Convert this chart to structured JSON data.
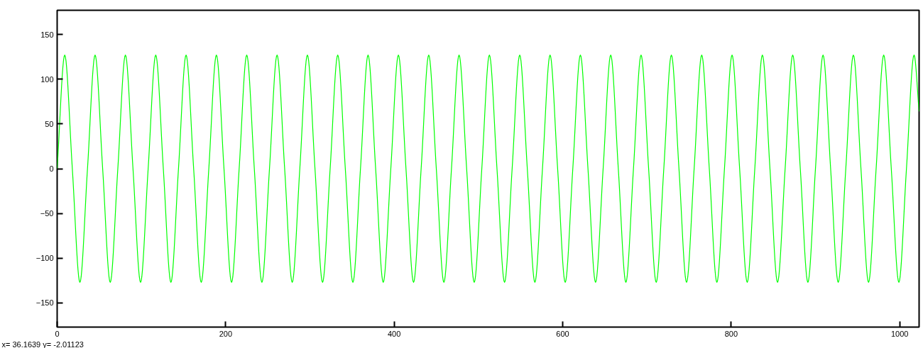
{
  "chart_data": {
    "type": "line",
    "x": [
      0,
      9,
      18,
      27,
      36,
      45,
      54,
      63,
      72,
      81,
      90,
      99,
      108,
      117,
      126,
      135,
      144,
      153,
      162,
      171,
      180,
      189,
      198,
      207,
      216,
      225,
      234,
      243,
      252,
      261,
      270,
      279,
      288,
      297,
      306,
      315,
      324,
      333,
      342,
      351,
      360,
      369,
      378,
      387,
      396,
      405,
      414,
      423,
      432,
      441,
      450,
      459,
      468,
      477,
      486,
      495,
      504,
      513,
      522,
      531,
      540,
      549,
      558,
      567,
      576,
      585,
      594,
      603,
      612,
      621,
      630,
      639,
      648,
      657,
      666,
      675,
      684,
      693,
      702,
      711,
      720,
      729,
      738,
      747,
      756,
      765,
      774,
      783,
      792,
      801,
      810,
      819,
      828,
      837,
      846,
      855,
      864,
      873,
      882,
      891,
      900,
      909,
      918,
      927,
      936,
      945,
      954,
      963,
      972,
      981,
      990,
      999,
      1008,
      1017,
      1023
    ],
    "series": [
      {
        "color": "#00ff00",
        "values": [
          0,
          127,
          0,
          -127,
          0,
          127,
          0,
          -127,
          0,
          127,
          0,
          -127,
          0,
          127,
          0,
          -127,
          0,
          127,
          0,
          -127,
          0,
          127,
          0,
          -127,
          0,
          127,
          0,
          -127,
          0,
          127,
          0,
          -127,
          0,
          127,
          0,
          -127,
          0,
          127,
          0,
          -127,
          0,
          127,
          0,
          -127,
          0,
          127,
          0,
          -127,
          0,
          127,
          0,
          -127,
          0,
          127,
          0,
          -127,
          0,
          127,
          0,
          -127,
          0,
          127,
          0,
          -127,
          0,
          127,
          0,
          -127,
          0,
          127,
          0,
          -127,
          0,
          127,
          0,
          -127,
          0,
          127,
          0,
          -127,
          0,
          127,
          0,
          -127,
          0,
          127,
          0,
          -127,
          0,
          127,
          0,
          -127,
          0,
          127,
          0,
          -127,
          0,
          127,
          0,
          -127,
          0,
          127,
          0,
          -127,
          0,
          127,
          0,
          -127,
          0,
          127,
          0,
          -127,
          0,
          127,
          64
        ]
      }
    ],
    "xlim": [
      0,
      1023
    ],
    "ylim": [
      -177,
      177
    ],
    "xticks": [
      0,
      200,
      400,
      600,
      800,
      1000
    ],
    "yticks": [
      -150,
      -100,
      -50,
      0,
      50,
      100,
      150
    ],
    "grid": false,
    "marker": "none",
    "line_style": "solid",
    "annotations": [
      "x=      36.1639 y=      -2.01123"
    ]
  }
}
